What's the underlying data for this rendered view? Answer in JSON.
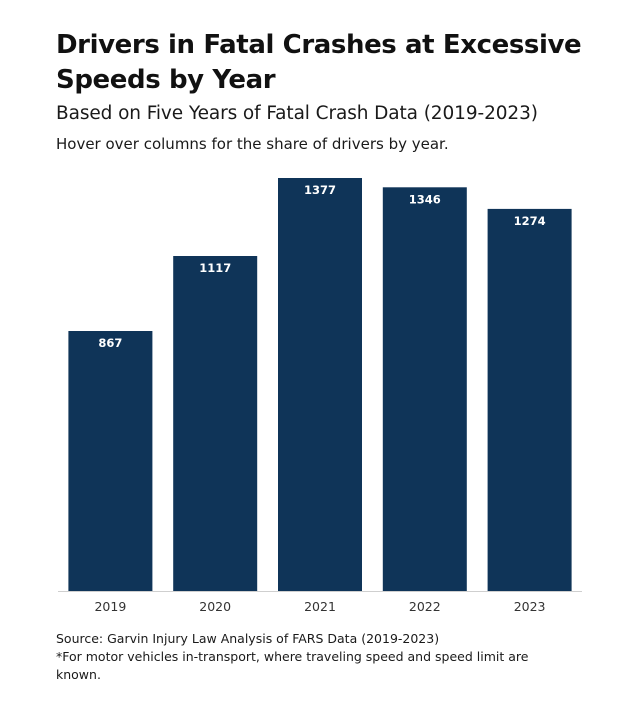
{
  "header": {
    "title": "Drivers in Fatal Crashes at Excessive Speeds by Year",
    "subtitle": "Based on Five Years of Fatal Crash Data (2019-2023)",
    "hint": "Hover over columns for the share of drivers by year."
  },
  "chart_data": {
    "type": "bar",
    "title": "Drivers in Fatal Crashes at Excessive Speeds by Year",
    "xlabel": "",
    "ylabel": "",
    "categories": [
      "2019",
      "2020",
      "2021",
      "2022",
      "2023"
    ],
    "values": [
      867,
      1117,
      1377,
      1346,
      1274
    ],
    "ylim": [
      0,
      1377
    ],
    "grid": false,
    "legend": "none",
    "bar_color": "#0f3458"
  },
  "footer": {
    "source": "Source: Garvin Injury Law Analysis of FARS Data (2019-2023)",
    "note": "*For motor vehicles in-transport, where traveling speed and speed limit are known."
  }
}
